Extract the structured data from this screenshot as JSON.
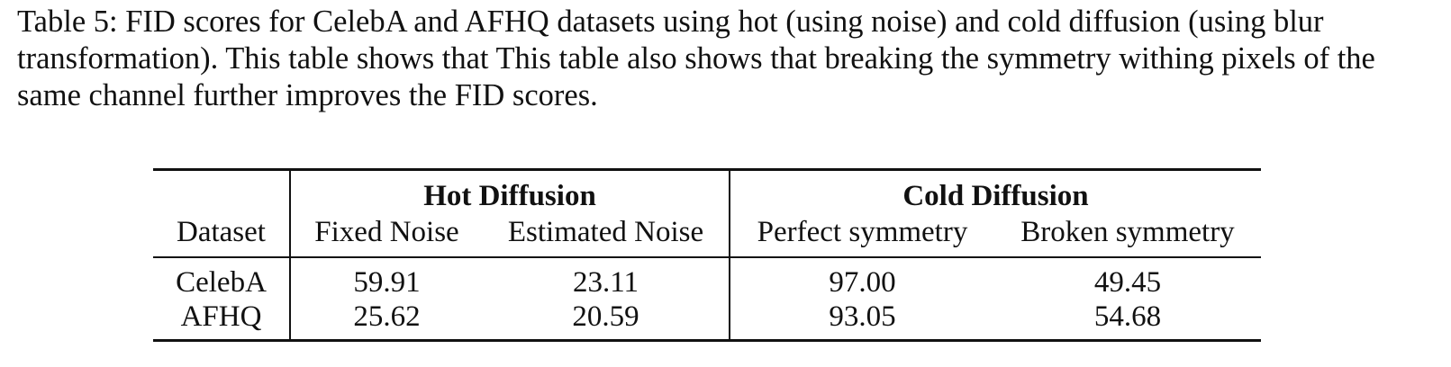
{
  "caption": "Table 5: FID scores for CelebA and AFHQ datasets using hot (using noise) and cold diffusion (using blur transformation). This table shows that This table also shows that breaking the symmetry withing pixels of the same channel further improves the FID scores.",
  "table": {
    "group_headers": {
      "hot": "Hot Diffusion",
      "cold": "Cold Diffusion"
    },
    "columns": {
      "dataset": "Dataset",
      "fixed_noise": "Fixed Noise",
      "estimated_noise": "Estimated Noise",
      "perfect_symmetry": "Perfect symmetry",
      "broken_symmetry": "Broken symmetry"
    },
    "rows": [
      {
        "dataset": "CelebA",
        "fixed_noise": "59.91",
        "estimated_noise": "23.11",
        "perfect_symmetry": "97.00",
        "broken_symmetry": "49.45"
      },
      {
        "dataset": "AFHQ",
        "fixed_noise": "25.62",
        "estimated_noise": "20.59",
        "perfect_symmetry": "93.05",
        "broken_symmetry": "54.68"
      }
    ]
  }
}
